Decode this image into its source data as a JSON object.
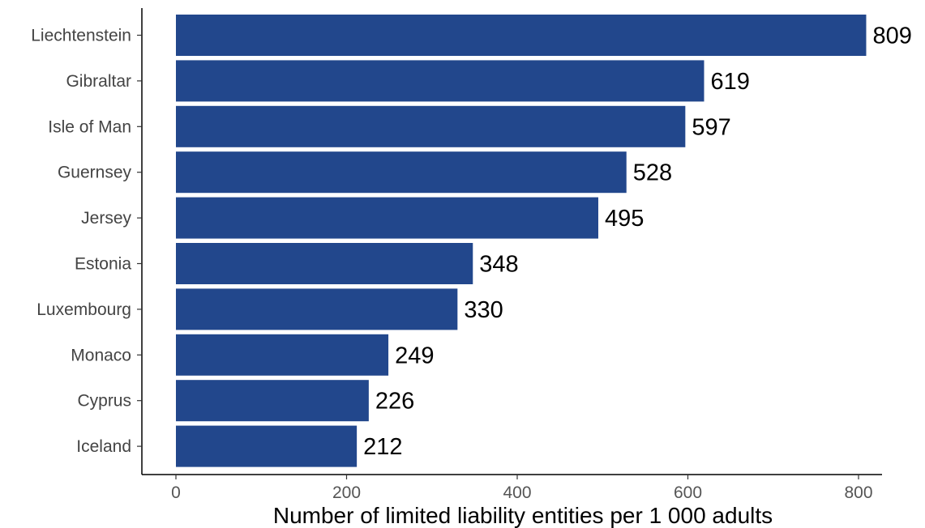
{
  "chart_data": {
    "type": "bar",
    "orientation": "horizontal",
    "categories": [
      "Liechtenstein",
      "Gibraltar",
      "Isle of Man",
      "Guernsey",
      "Jersey",
      "Estonia",
      "Luxembourg",
      "Monaco",
      "Cyprus",
      "Iceland"
    ],
    "values": [
      809,
      619,
      597,
      528,
      495,
      348,
      330,
      249,
      226,
      212
    ],
    "data_labels": [
      "809",
      "619",
      "597",
      "528",
      "495",
      "348",
      "330",
      "249",
      "226",
      "212"
    ],
    "xlabel": "Number of limited liability entities per 1 000 adults",
    "ylabel": "",
    "xlim": [
      0,
      820
    ],
    "x_ticks": [
      0,
      200,
      400,
      600,
      800
    ],
    "x_tick_labels": [
      "0",
      "200",
      "400",
      "600",
      "800"
    ],
    "grid": false,
    "bar_color": "#22478c"
  }
}
